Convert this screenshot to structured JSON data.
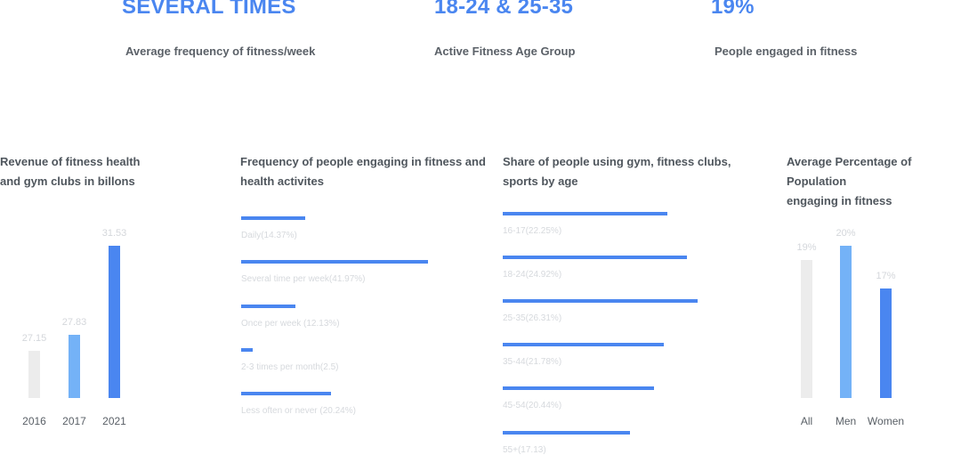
{
  "stats": [
    {
      "value": "SEVERAL TIMES",
      "label": "Average frequency of fitness/week"
    },
    {
      "value": "18-24 & 25-35",
      "label": "Active Fitness Age Group"
    },
    {
      "value": "19%",
      "label": "People engaged in fitness"
    }
  ],
  "colors": {
    "accent": "#4a86f0",
    "light_blue": "#74b2f7",
    "gray": "#ececec"
  },
  "chart_data": [
    {
      "type": "bar",
      "title": "Revenue of fitness health and gym clubs in billons",
      "title_lines": [
        "Revenue of fitness health",
        "and gym clubs in billons"
      ],
      "categories": [
        "2016",
        "2017",
        "2021"
      ],
      "values": [
        27.15,
        27.83,
        31.53
      ],
      "value_labels": [
        "27.15",
        "27.83",
        "31.53"
      ],
      "bar_colors": [
        "#ececec",
        "#74b2f7",
        "#4a86f0"
      ],
      "ylim": [
        25.2,
        31.53
      ]
    },
    {
      "type": "bar",
      "orientation": "horizontal",
      "title": "Frequency of people engaging in fitness and health activites",
      "title_lines": [
        "Frequency of people engaging in fitness and",
        "health activites"
      ],
      "categories": [
        "Daily",
        "Several time per week",
        "Once per week",
        "2-3 times per month",
        "Less often or never"
      ],
      "values": [
        14.37,
        41.97,
        12.13,
        2.5,
        20.24
      ],
      "labels": [
        "Daily(14.37%)",
        "Several time per week(41.97%)",
        "Once per week (12.13%)",
        "2-3 times per month(2.5)",
        "Less often or never (20.24%)"
      ],
      "xlim": [
        0,
        41.97
      ]
    },
    {
      "type": "bar",
      "orientation": "horizontal",
      "title": "Share of people using gym, fitness clubs, sports by age",
      "title_lines": [
        "Share of people using gym, fitness clubs,",
        "sports by age"
      ],
      "categories": [
        "16-17",
        "18-24",
        "25-35",
        "35-44",
        "45-54",
        "55+"
      ],
      "values": [
        22.25,
        24.92,
        26.31,
        21.78,
        20.44,
        17.13
      ],
      "labels": [
        "16-17(22.25%)",
        "18-24(24.92%)",
        "25-35(26.31%)",
        "35-44(21.78%)",
        "45-54(20.44%)",
        "55+(17.13)"
      ]
    },
    {
      "type": "bar",
      "title": "Average Percentage of Population engaging in fitness",
      "title_lines": [
        "Average Percentage of Population",
        "engaging in fitness"
      ],
      "categories": [
        "All",
        "Men",
        "Women"
      ],
      "values": [
        19,
        20,
        17
      ],
      "value_labels": [
        "19%",
        "20%",
        "17%"
      ],
      "bar_colors": [
        "#ececec",
        "#74b2f7",
        "#4a86f0"
      ],
      "ylim": [
        9.3,
        20
      ]
    }
  ]
}
